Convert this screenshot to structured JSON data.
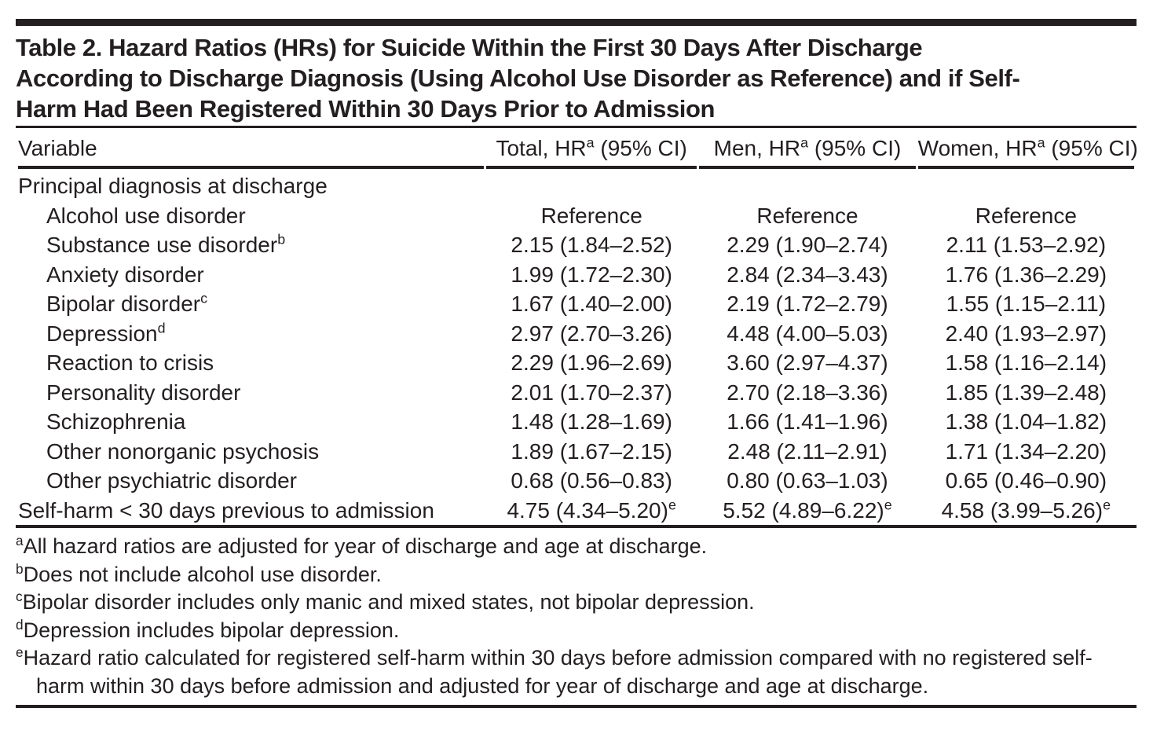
{
  "title_lines": [
    "Table 2. Hazard Ratios (HRs) for Suicide Within the First 30 Days After Discharge",
    "According to Discharge Diagnosis (Using Alcohol Use Disorder as Reference) and if Self-",
    "Harm Had Been Registered Within 30 Days Prior to Admission"
  ],
  "columns": {
    "variable": "Variable",
    "groups": [
      {
        "pre": "Total, HR",
        "sup": "a",
        "post": " (95% CI)"
      },
      {
        "pre": "Men, HR",
        "sup": "a",
        "post": " (95% CI)"
      },
      {
        "pre": "Women, HR",
        "sup": "a",
        "post": " (95% CI)"
      }
    ]
  },
  "rows": [
    {
      "label": "Principal diagnosis at discharge",
      "indent": 0,
      "values": [
        "",
        "",
        ""
      ]
    },
    {
      "label": "Alcohol use disorder",
      "indent": 1,
      "values": [
        "Reference",
        "Reference",
        "Reference"
      ]
    },
    {
      "label": "Substance use disorder",
      "label_sup": "b",
      "indent": 1,
      "values": [
        "2.15 (1.84–2.52)",
        "2.29 (1.90–2.74)",
        "2.11 (1.53–2.92)"
      ]
    },
    {
      "label": "Anxiety disorder",
      "indent": 1,
      "values": [
        "1.99 (1.72–2.30)",
        "2.84 (2.34–3.43)",
        "1.76 (1.36–2.29)"
      ]
    },
    {
      "label": "Bipolar disorder",
      "label_sup": "c",
      "indent": 1,
      "values": [
        "1.67 (1.40–2.00)",
        "2.19 (1.72–2.79)",
        "1.55 (1.15–2.11)"
      ]
    },
    {
      "label": "Depression",
      "label_sup": "d",
      "indent": 1,
      "values": [
        "2.97 (2.70–3.26)",
        "4.48 (4.00–5.03)",
        "2.40 (1.93–2.97)"
      ]
    },
    {
      "label": "Reaction to crisis",
      "indent": 1,
      "values": [
        "2.29 (1.96–2.69)",
        "3.60 (2.97–4.37)",
        "1.58 (1.16–2.14)"
      ]
    },
    {
      "label": "Personality disorder",
      "indent": 1,
      "values": [
        "2.01 (1.70–2.37)",
        "2.70 (2.18–3.36)",
        "1.85 (1.39–2.48)"
      ]
    },
    {
      "label": "Schizophrenia",
      "indent": 1,
      "values": [
        "1.48 (1.28–1.69)",
        "1.66 (1.41–1.96)",
        "1.38 (1.04–1.82)"
      ]
    },
    {
      "label": "Other nonorganic psychosis",
      "indent": 1,
      "values": [
        "1.89 (1.67–2.15)",
        "2.48 (2.11–2.91)",
        "1.71 (1.34–2.20)"
      ]
    },
    {
      "label": "Other psychiatric disorder",
      "indent": 1,
      "values": [
        "0.68 (0.56–0.83)",
        "0.80 (0.63–1.03)",
        "0.65 (0.46–0.90)"
      ]
    },
    {
      "label": "Self-harm < 30 days previous to admission",
      "indent": 0,
      "values": [
        {
          "v": "4.75 (4.34–5.20)",
          "sup": "e"
        },
        {
          "v": "5.52 (4.89–6.22)",
          "sup": "e"
        },
        {
          "v": "4.58 (3.99–5.26)",
          "sup": "e"
        }
      ]
    }
  ],
  "footnotes": [
    {
      "marker": "a",
      "text": "All hazard ratios are adjusted for year of discharge and age at discharge."
    },
    {
      "marker": "b",
      "text": "Does not include alcohol use disorder."
    },
    {
      "marker": "c",
      "text": "Bipolar disorder includes only manic and mixed states, not bipolar depression."
    },
    {
      "marker": "d",
      "text": "Depression includes bipolar depression."
    },
    {
      "marker": "e",
      "text": "Hazard ratio calculated for registered self-harm within 30 days before admission compared with no registered self-harm within 30 days before admission and adjusted for year of discharge and age at discharge."
    }
  ],
  "colors": {
    "text_and_rules": "#231f20",
    "background": "#ffffff"
  }
}
